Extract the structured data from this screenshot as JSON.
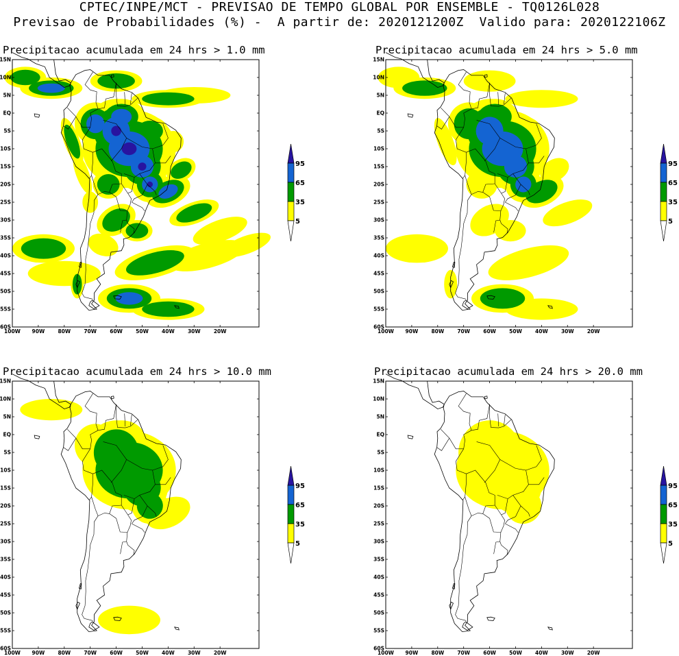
{
  "header": {
    "line1": "CPTEC/INPE/MCT - PREVISAO DE TEMPO GLOBAL POR ENSEMBLE - TQ0126L028",
    "line2": "Previsao de Probabilidades (%) -  A partir de: 2020121200Z  Valido para: 2020122106Z"
  },
  "colors": {
    "yellow": "#ffff00",
    "green": "#009a00",
    "blue": "#1464d2",
    "darkblue": "#2814a0",
    "land_line": "#000000"
  },
  "legend": {
    "labels": [
      "95",
      "65",
      "35",
      "5"
    ]
  },
  "axes": {
    "lat_ticks": [
      "15N",
      "10N",
      "5N",
      "EQ",
      "5S",
      "10S",
      "15S",
      "20S",
      "25S",
      "30S",
      "35S",
      "40S",
      "45S",
      "50S",
      "55S",
      "60S"
    ],
    "lon_ticks": [
      "100W",
      "90W",
      "80W",
      "70W",
      "60W",
      "50W",
      "40W",
      "30W",
      "20W"
    ]
  },
  "panels": [
    {
      "title": "Precipitacao acumulada em 24 hrs > 1.0 mm",
      "threshold": "1.0 mm",
      "intensity": 4
    },
    {
      "title": "Precipitacao acumulada em 24 hrs > 5.0 mm",
      "threshold": "5.0 mm",
      "intensity": 3
    },
    {
      "title": "Precipitacao acumulada em 24 hrs > 10.0 mm",
      "threshold": "10.0 mm",
      "intensity": 2
    },
    {
      "title": "Precipitacao acumulada em 24 hrs > 20.0 mm",
      "threshold": "20.0 mm",
      "intensity": 1
    }
  ]
}
